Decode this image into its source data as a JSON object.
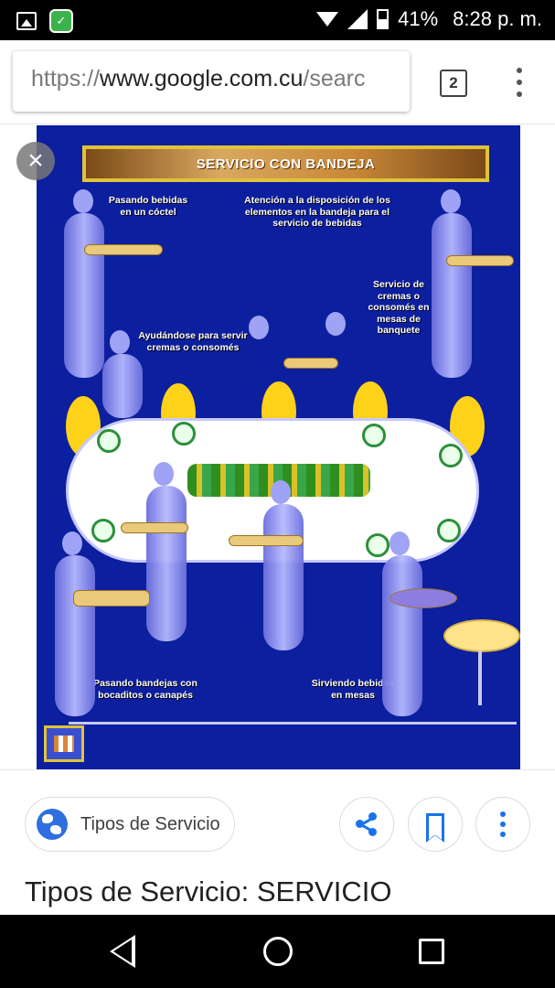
{
  "status_bar": {
    "battery": "41%",
    "time": "8:28 p. m."
  },
  "browser": {
    "url_scheme": "https://",
    "url_host": "www.google.com.cu",
    "url_path": "/searc",
    "tab_count": "2"
  },
  "poster": {
    "title": "SERVICIO CON BANDEJA",
    "labels": {
      "cocktail": "Pasando bebidas en un cóctel",
      "tray_attention": "Atención a la disposición de los elementos en la bandeja para el servicio de bebidas",
      "banquet": "Servicio de cremas o consomés en mesas de banquete",
      "creams": "Ayudándose para servir cremas o consomés",
      "canapes": "Pasando bandejas con bocaditos o canapés",
      "tables": "Sirviendo bebidas en mesas"
    },
    "colors": {
      "background": "#0c1f9e",
      "chairs": "#ffd21a",
      "frame": "#e1c23a"
    }
  },
  "result": {
    "source_label": "Tipos de Servicio",
    "title": "Tipos de Servicio: SERVICIO"
  },
  "colors": {
    "accent": "#1a73e8"
  }
}
